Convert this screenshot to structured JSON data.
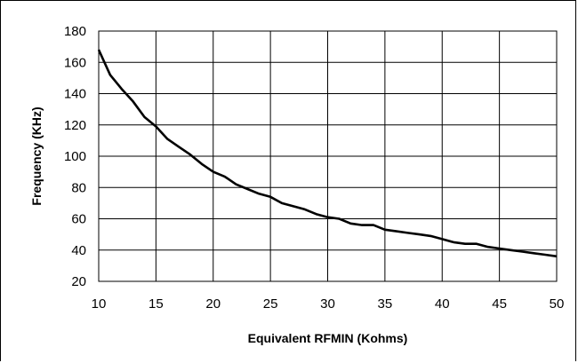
{
  "chart_data": {
    "type": "line",
    "title": "",
    "xlabel": "Equivalent RFMIN (Kohms)",
    "ylabel": "Frequency (KHz)",
    "xlim": [
      10,
      50
    ],
    "ylim": [
      20,
      180
    ],
    "x_ticks": [
      10,
      15,
      20,
      25,
      30,
      35,
      40,
      45,
      50
    ],
    "y_ticks": [
      20,
      40,
      60,
      80,
      100,
      120,
      140,
      160,
      180
    ],
    "grid": true,
    "legend": "none",
    "series": [
      {
        "color": "#000000",
        "points": [
          [
            10,
            168
          ],
          [
            11,
            152
          ],
          [
            12,
            143
          ],
          [
            13,
            135
          ],
          [
            14,
            125
          ],
          [
            15,
            119
          ],
          [
            16,
            111
          ],
          [
            17,
            106
          ],
          [
            18,
            101
          ],
          [
            19,
            95
          ],
          [
            20,
            90
          ],
          [
            21,
            87
          ],
          [
            22,
            82
          ],
          [
            23,
            79
          ],
          [
            24,
            76
          ],
          [
            25,
            74
          ],
          [
            26,
            70
          ],
          [
            27,
            68
          ],
          [
            28,
            66
          ],
          [
            29,
            63
          ],
          [
            30,
            61
          ],
          [
            31,
            60
          ],
          [
            32,
            57
          ],
          [
            33,
            56
          ],
          [
            34,
            56
          ],
          [
            35,
            53
          ],
          [
            36,
            52
          ],
          [
            37,
            51
          ],
          [
            38,
            50
          ],
          [
            39,
            49
          ],
          [
            40,
            47
          ],
          [
            41,
            45
          ],
          [
            42,
            44
          ],
          [
            43,
            44
          ],
          [
            44,
            42
          ],
          [
            45,
            41
          ],
          [
            46,
            40
          ],
          [
            47,
            39
          ],
          [
            48,
            38
          ],
          [
            49,
            37
          ],
          [
            50,
            36
          ]
        ]
      }
    ]
  }
}
